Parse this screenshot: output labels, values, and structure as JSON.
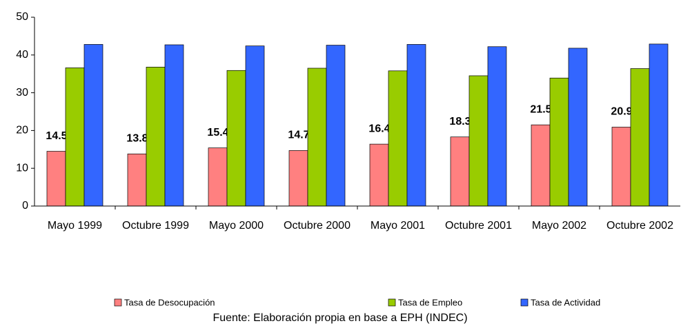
{
  "chart_data": {
    "type": "bar",
    "categories": [
      "Mayo 1999",
      "Octubre 1999",
      "Mayo 2000",
      "Octubre 2000",
      "Mayo 2001",
      "Octubre 2001",
      "Mayo 2002",
      "Octubre 2002"
    ],
    "series": [
      {
        "name": "Tasa de Desocupación",
        "color": "#ff8080",
        "values": [
          14.5,
          13.8,
          15.4,
          14.7,
          16.4,
          18.3,
          21.5,
          20.9
        ],
        "labels": true
      },
      {
        "name": "Tasa de Empleo",
        "color": "#99cc00",
        "values": [
          36.6,
          36.8,
          35.9,
          36.5,
          35.8,
          34.5,
          33.9,
          36.4
        ]
      },
      {
        "name": "Tasa de Actividad",
        "color": "#3366ff",
        "values": [
          42.8,
          42.7,
          42.4,
          42.6,
          42.8,
          42.2,
          41.8,
          42.9
        ]
      }
    ],
    "ylim": [
      0,
      50
    ],
    "yticks": [
      0,
      10,
      20,
      30,
      40,
      50
    ],
    "grid": false,
    "legend": "bottom",
    "source": "Fuente: Elaboración propia en base a  EPH  (INDEC)"
  }
}
